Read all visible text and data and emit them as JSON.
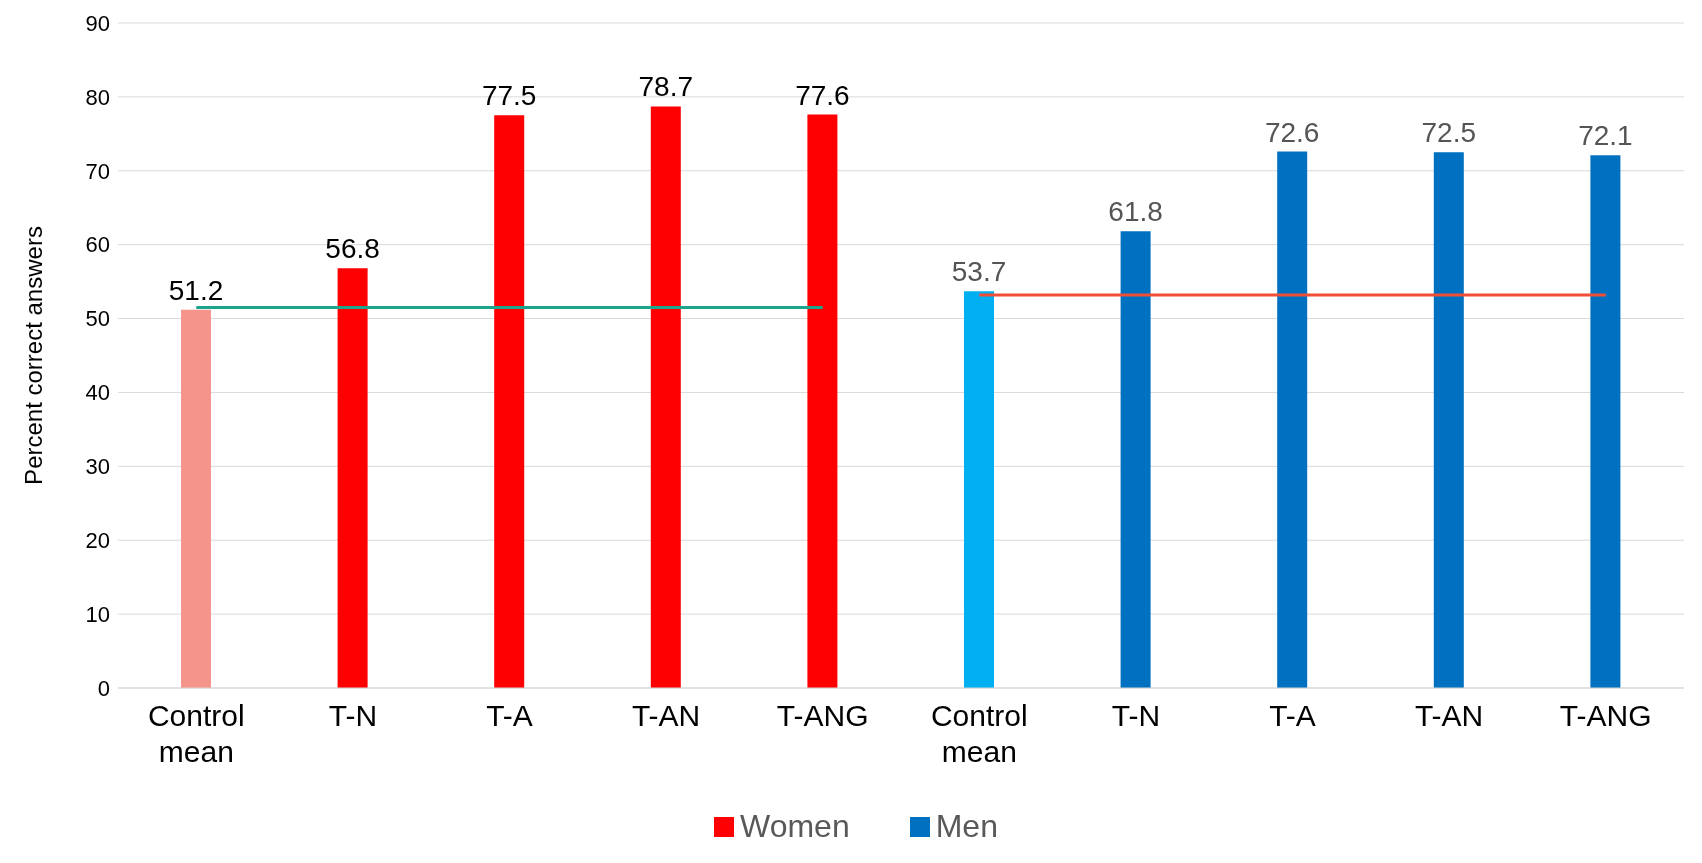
{
  "chart_data": {
    "type": "bar",
    "ylabel": "Percent correct answers",
    "categories": [
      "Control mean",
      "T-N",
      "T-A",
      "T-AN",
      "T-ANG",
      "Control mean",
      "T-N",
      "T-A",
      "T-AN",
      "T-ANG"
    ],
    "series": [
      {
        "name": "Women",
        "color": "#ff0000",
        "colors": [
          "#f4948a",
          "#ff0000",
          "#ff0000",
          "#ff0000",
          "#ff0000",
          null,
          null,
          null,
          null,
          null
        ],
        "values": [
          51.2,
          56.8,
          77.5,
          78.7,
          77.6,
          null,
          null,
          null,
          null,
          null
        ],
        "value_labels": [
          "51.2",
          "56.8",
          "77.5",
          "78.7",
          "77.6",
          null,
          null,
          null,
          null,
          null
        ]
      },
      {
        "name": "Men",
        "color": "#0070c0",
        "colors": [
          null,
          null,
          null,
          null,
          null,
          "#00b0f0",
          "#0070c0",
          "#0070c0",
          "#0070c0",
          "#0070c0"
        ],
        "values": [
          null,
          null,
          null,
          null,
          null,
          53.7,
          61.8,
          72.6,
          72.5,
          72.1
        ],
        "value_labels": [
          null,
          null,
          null,
          null,
          null,
          "53.7",
          "61.8",
          "72.6",
          "72.5",
          "72.1"
        ]
      },
      {
        "type": "line",
        "color": "#1aa58c",
        "values": [
          51.5,
          51.5,
          51.5,
          51.5,
          51.5,
          null,
          null,
          null,
          null,
          null
        ]
      },
      {
        "type": "line",
        "color": "#f04e37",
        "values": [
          null,
          null,
          null,
          null,
          null,
          53.2,
          53.2,
          53.2,
          53.2,
          53.2
        ]
      }
    ],
    "ylim": [
      0,
      90
    ],
    "yticks": [
      0,
      10,
      20,
      30,
      40,
      50,
      60,
      70,
      80,
      90
    ],
    "grid": "y",
    "legend": "bottom"
  }
}
